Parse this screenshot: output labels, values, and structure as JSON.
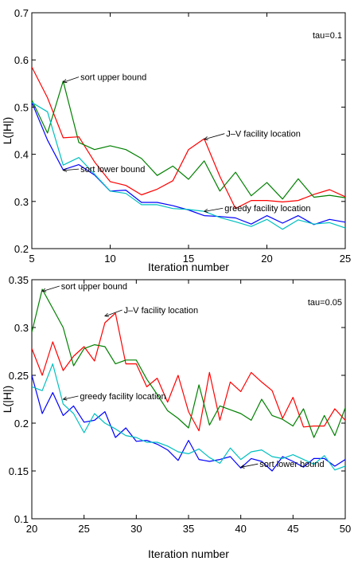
{
  "chart_data": [
    {
      "type": "line",
      "xlabel": "Iteration number",
      "ylabel": "L(|H|)",
      "xlim": [
        5,
        25
      ],
      "ylim": [
        0.2,
        0.7
      ],
      "xticks": [
        5,
        10,
        15,
        20,
        25
      ],
      "yticks": [
        0.2,
        0.3,
        0.4,
        0.5,
        0.6,
        0.7
      ],
      "legend_text": "tau=0.1",
      "grid": false,
      "x": [
        5,
        6,
        7,
        8,
        9,
        10,
        11,
        12,
        13,
        14,
        15,
        16,
        17,
        18,
        19,
        20,
        21,
        22,
        23,
        24,
        25
      ],
      "series": [
        {
          "color": "#ff0000",
          "values": [
            0.585,
            0.52,
            0.435,
            0.437,
            0.384,
            0.342,
            0.334,
            0.314,
            0.326,
            0.344,
            0.41,
            0.433,
            0.353,
            0.285,
            0.302,
            0.302,
            0.299,
            0.302,
            0.315,
            0.325,
            0.31
          ]
        },
        {
          "color": "#008000",
          "values": [
            0.515,
            0.445,
            0.555,
            0.425,
            0.41,
            0.418,
            0.41,
            0.391,
            0.355,
            0.375,
            0.347,
            0.386,
            0.322,
            0.362,
            0.312,
            0.34,
            0.305,
            0.348,
            0.309,
            0.313,
            0.308
          ]
        },
        {
          "color": "#0000ff",
          "values": [
            0.51,
            0.43,
            0.367,
            0.378,
            0.356,
            0.322,
            0.324,
            0.298,
            0.298,
            0.291,
            0.282,
            0.27,
            0.268,
            0.265,
            0.252,
            0.27,
            0.254,
            0.27,
            0.251,
            0.262,
            0.256
          ]
        },
        {
          "color": "#00c0c0",
          "values": [
            0.51,
            0.49,
            0.377,
            0.393,
            0.358,
            0.322,
            0.317,
            0.293,
            0.293,
            0.285,
            0.283,
            0.279,
            0.266,
            0.257,
            0.247,
            0.262,
            0.241,
            0.261,
            0.252,
            0.255,
            0.244
          ]
        }
      ],
      "annotations": [
        {
          "text": "sort upper bound",
          "x": 7,
          "y": 0.553,
          "text_x": 8.1,
          "text_y": 0.557
        },
        {
          "text": "J–V facility location",
          "x": 16,
          "y": 0.432,
          "text_x": 17.4,
          "text_y": 0.437
        },
        {
          "text": "sort lower bound",
          "x": 7,
          "y": 0.366,
          "text_x": 8.1,
          "text_y": 0.362
        },
        {
          "text": "greedy facility location",
          "x": 16,
          "y": 0.279,
          "text_x": 17.3,
          "text_y": 0.279
        }
      ]
    },
    {
      "type": "line",
      "xlabel": "Iteration number",
      "ylabel": "L(|H|)",
      "xlim": [
        20,
        50
      ],
      "ylim": [
        0.1,
        0.35
      ],
      "xticks": [
        20,
        25,
        30,
        35,
        40,
        45,
        50
      ],
      "yticks": [
        0.1,
        0.15,
        0.2,
        0.25,
        0.3,
        0.35
      ],
      "legend_text": "tau=0.05",
      "grid": false,
      "x": [
        20,
        21,
        22,
        23,
        24,
        25,
        26,
        27,
        28,
        29,
        30,
        31,
        32,
        33,
        34,
        35,
        36,
        37,
        38,
        39,
        40,
        41,
        42,
        43,
        44,
        45,
        46,
        47,
        48,
        49,
        50
      ],
      "series": [
        {
          "color": "#ff0000",
          "values": [
            0.278,
            0.25,
            0.285,
            0.255,
            0.27,
            0.28,
            0.265,
            0.305,
            0.315,
            0.262,
            0.262,
            0.238,
            0.247,
            0.222,
            0.25,
            0.212,
            0.192,
            0.253,
            0.203,
            0.243,
            0.233,
            0.253,
            0.243,
            0.234,
            0.205,
            0.227,
            0.196,
            0.197,
            0.197,
            0.215,
            0.203
          ]
        },
        {
          "color": "#008000",
          "values": [
            0.295,
            0.34,
            0.32,
            0.3,
            0.26,
            0.278,
            0.282,
            0.28,
            0.262,
            0.266,
            0.266,
            0.246,
            0.23,
            0.213,
            0.205,
            0.195,
            0.24,
            0.198,
            0.218,
            0.214,
            0.21,
            0.203,
            0.225,
            0.208,
            0.204,
            0.197,
            0.215,
            0.185,
            0.208,
            0.187,
            0.216
          ]
        },
        {
          "color": "#0000ff",
          "values": [
            0.25,
            0.21,
            0.232,
            0.208,
            0.218,
            0.201,
            0.203,
            0.212,
            0.185,
            0.195,
            0.181,
            0.182,
            0.178,
            0.172,
            0.161,
            0.182,
            0.162,
            0.16,
            0.162,
            0.165,
            0.153,
            0.163,
            0.16,
            0.15,
            0.165,
            0.16,
            0.154,
            0.163,
            0.163,
            0.155,
            0.162
          ]
        },
        {
          "color": "#00c0c0",
          "values": [
            0.238,
            0.234,
            0.262,
            0.22,
            0.21,
            0.19,
            0.21,
            0.2,
            0.194,
            0.187,
            0.185,
            0.18,
            0.18,
            0.176,
            0.17,
            0.168,
            0.173,
            0.164,
            0.158,
            0.174,
            0.162,
            0.17,
            0.172,
            0.165,
            0.163,
            0.167,
            0.162,
            0.157,
            0.166,
            0.151,
            0.155
          ]
        }
      ],
      "annotations": [
        {
          "text": "sort upper bound",
          "x": 21,
          "y": 0.338,
          "text_x": 22.8,
          "text_y": 0.34
        },
        {
          "text": "J–V facility location",
          "x": 27,
          "y": 0.312,
          "text_x": 28.8,
          "text_y": 0.315
        },
        {
          "text": "greedy facility location",
          "x": 23,
          "y": 0.225,
          "text_x": 24.6,
          "text_y": 0.225
        },
        {
          "text": "sort lower bound",
          "x": 40,
          "y": 0.154,
          "text_x": 41.8,
          "text_y": 0.154
        }
      ]
    }
  ]
}
